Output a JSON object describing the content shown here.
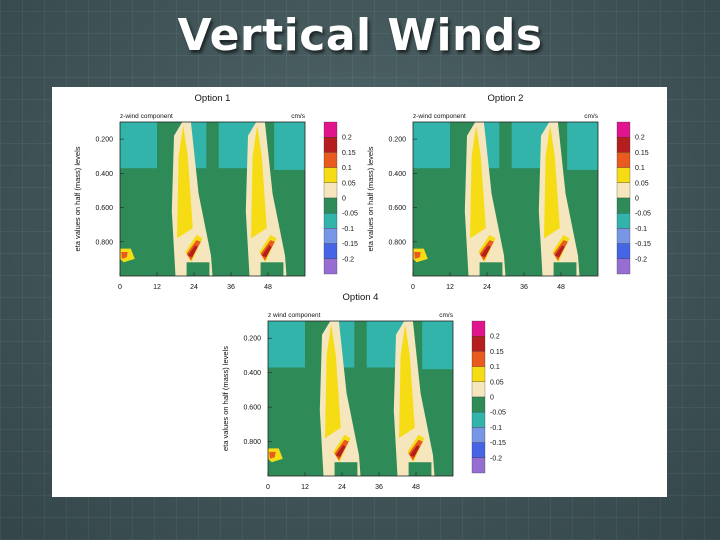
{
  "slide": {
    "title": "Vertical Winds"
  },
  "colors": {
    "levels": [
      "#e0148c",
      "#b41e1e",
      "#e85a1e",
      "#f5dc14",
      "#f5e6be",
      "#2e8b57",
      "#32b4aa",
      "#7896e6",
      "#4664e6",
      "#966ed2"
    ],
    "background_level": "#2e8b57",
    "slide_background": "#3d5054"
  },
  "chart_data": [
    {
      "type": "heatmap",
      "title": "Option 1",
      "subtitle": "z-wind component",
      "units": "cm/s",
      "ylabel": "eta values on half (mass) levels",
      "yticks": [
        "0.200",
        "0.400",
        "0.600",
        "0.800"
      ],
      "xticks": [
        "0",
        "12",
        "24",
        "36",
        "48"
      ],
      "xlim": [
        0,
        60
      ],
      "ylim": [
        1.0,
        0.1
      ],
      "legend_labels": [
        "0.2",
        "0.15",
        "0.1",
        "0.05",
        "0",
        "-0.05",
        "-0.1",
        "-0.15",
        "-0.2"
      ]
    },
    {
      "type": "heatmap",
      "title": "Option 2",
      "subtitle": "z-wind component",
      "units": "cm/s",
      "ylabel": "eta values on half (mass) levels",
      "yticks": [
        "0.200",
        "0.400",
        "0.600",
        "0.800"
      ],
      "xticks": [
        "0",
        "12",
        "24",
        "36",
        "48"
      ],
      "xlim": [
        0,
        60
      ],
      "ylim": [
        1.0,
        0.1
      ],
      "legend_labels": [
        "0.2",
        "0.15",
        "0.1",
        "0.05",
        "0",
        "-0.05",
        "-0.1",
        "-0.15",
        "-0.2"
      ]
    },
    {
      "type": "heatmap",
      "title": "Option 4",
      "subtitle": "z wind component",
      "units": "cm/s",
      "ylabel": "eta values on half (mass) levels",
      "yticks": [
        "0.200",
        "0.400",
        "0.600",
        "0.800"
      ],
      "xticks": [
        "0",
        "12",
        "24",
        "36",
        "48"
      ],
      "xlim": [
        0,
        60
      ],
      "ylim": [
        1.0,
        0.1
      ],
      "legend_labels": [
        "0.2",
        "0.15",
        "0.1",
        "0.05",
        "0",
        "-0.05",
        "-0.1",
        "-0.15",
        "-0.2"
      ]
    }
  ]
}
